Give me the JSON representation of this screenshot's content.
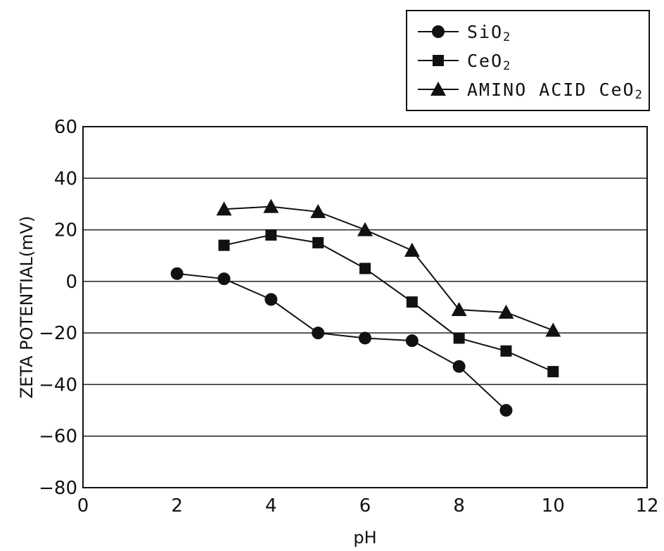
{
  "chart_data": {
    "type": "line",
    "title": "",
    "xlabel": "pH",
    "ylabel": "ZETA POTENTIAL(mV)",
    "xlim": [
      0,
      12
    ],
    "ylim": [
      -80,
      60
    ],
    "xticks": [
      0,
      2,
      4,
      6,
      8,
      10,
      12
    ],
    "yticks": [
      60,
      40,
      20,
      0,
      -20,
      -40,
      -60,
      -80
    ],
    "grid": "horizontal",
    "legend_position": "top-right",
    "series": [
      {
        "name": "SiO2",
        "marker": "circle",
        "x": [
          2,
          3,
          4,
          5,
          6,
          7,
          8,
          9
        ],
        "y": [
          3,
          1,
          -7,
          -20,
          -22,
          -23,
          -33,
          -50
        ]
      },
      {
        "name": "CeO2",
        "marker": "square",
        "x": [
          3,
          4,
          5,
          6,
          7,
          8,
          9,
          10
        ],
        "y": [
          14,
          18,
          15,
          5,
          -8,
          -22,
          -27,
          -35
        ]
      },
      {
        "name": "AMINO ACID CeO2",
        "marker": "triangle",
        "x": [
          3,
          4,
          5,
          6,
          7,
          8,
          9,
          10
        ],
        "y": [
          28,
          29,
          27,
          20,
          12,
          -11,
          -12,
          -19
        ]
      }
    ]
  },
  "legend": [
    {
      "label": "SiO2",
      "base": "SiO",
      "sub": "2"
    },
    {
      "label": "CeO2",
      "base": "CeO",
      "sub": "2"
    },
    {
      "label": "AMINO ACID CeO2",
      "base": "AMINO ACID CeO",
      "sub": "2"
    }
  ]
}
